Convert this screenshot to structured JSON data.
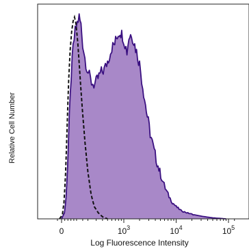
{
  "chart_data": {
    "type": "area",
    "title": "",
    "xlabel": "Log Fluorescence Intensity",
    "ylabel": "Relative Cell Number",
    "x_scale": "biexponential",
    "xlim": [
      -20,
      150000
    ],
    "ylim": [
      0,
      1
    ],
    "x_ticks": [
      {
        "value": 0,
        "label": "0"
      },
      {
        "value": 1000,
        "label": "10",
        "exp": "3"
      },
      {
        "value": 10000,
        "label": "10",
        "exp": "4"
      },
      {
        "value": 100000,
        "label": "10",
        "exp": "5"
      }
    ],
    "grid": false,
    "legend": "none",
    "series": [
      {
        "style": "filled",
        "fill": "#a888c8",
        "stroke": "#3a1080",
        "points": [
          [
            0,
            0.0
          ],
          [
            18,
            0.03
          ],
          [
            28,
            0.1
          ],
          [
            38,
            0.26
          ],
          [
            50,
            0.5
          ],
          [
            62,
            0.7
          ],
          [
            75,
            0.84
          ],
          [
            90,
            0.92
          ],
          [
            105,
            0.96
          ],
          [
            120,
            0.99
          ],
          [
            135,
            0.95
          ],
          [
            150,
            0.86
          ],
          [
            170,
            0.79
          ],
          [
            190,
            0.74
          ],
          [
            215,
            0.7
          ],
          [
            240,
            0.67
          ],
          [
            270,
            0.66
          ],
          [
            300,
            0.67
          ],
          [
            340,
            0.7
          ],
          [
            380,
            0.72
          ],
          [
            430,
            0.73
          ],
          [
            480,
            0.76
          ],
          [
            540,
            0.8
          ],
          [
            600,
            0.84
          ],
          [
            680,
            0.86
          ],
          [
            760,
            0.9
          ],
          [
            850,
            0.92
          ],
          [
            950,
            0.9
          ],
          [
            1050,
            0.86
          ],
          [
            1150,
            0.82
          ],
          [
            1250,
            0.89
          ],
          [
            1400,
            0.91
          ],
          [
            1550,
            0.87
          ],
          [
            1750,
            0.82
          ],
          [
            2000,
            0.76
          ],
          [
            2300,
            0.65
          ],
          [
            2700,
            0.53
          ],
          [
            3200,
            0.42
          ],
          [
            3800,
            0.33
          ],
          [
            4500,
            0.26
          ],
          [
            5300,
            0.2
          ],
          [
            6200,
            0.15
          ],
          [
            7300,
            0.11
          ],
          [
            8500,
            0.08
          ],
          [
            10000,
            0.06
          ],
          [
            12500,
            0.04
          ],
          [
            16000,
            0.03
          ],
          [
            22000,
            0.02
          ],
          [
            32000,
            0.012
          ],
          [
            50000,
            0.005
          ],
          [
            90000,
            0.0
          ]
        ]
      },
      {
        "style": "dashed",
        "stroke": "#111111",
        "points": [
          [
            -5,
            0.0
          ],
          [
            5,
            0.02
          ],
          [
            15,
            0.08
          ],
          [
            25,
            0.22
          ],
          [
            35,
            0.45
          ],
          [
            45,
            0.68
          ],
          [
            55,
            0.83
          ],
          [
            65,
            0.92
          ],
          [
            75,
            0.97
          ],
          [
            85,
            0.99
          ],
          [
            95,
            0.96
          ],
          [
            110,
            0.86
          ],
          [
            125,
            0.72
          ],
          [
            145,
            0.55
          ],
          [
            170,
            0.38
          ],
          [
            200,
            0.23
          ],
          [
            235,
            0.12
          ],
          [
            275,
            0.06
          ],
          [
            330,
            0.03
          ],
          [
            400,
            0.01
          ],
          [
            500,
            0.0
          ]
        ]
      }
    ]
  }
}
